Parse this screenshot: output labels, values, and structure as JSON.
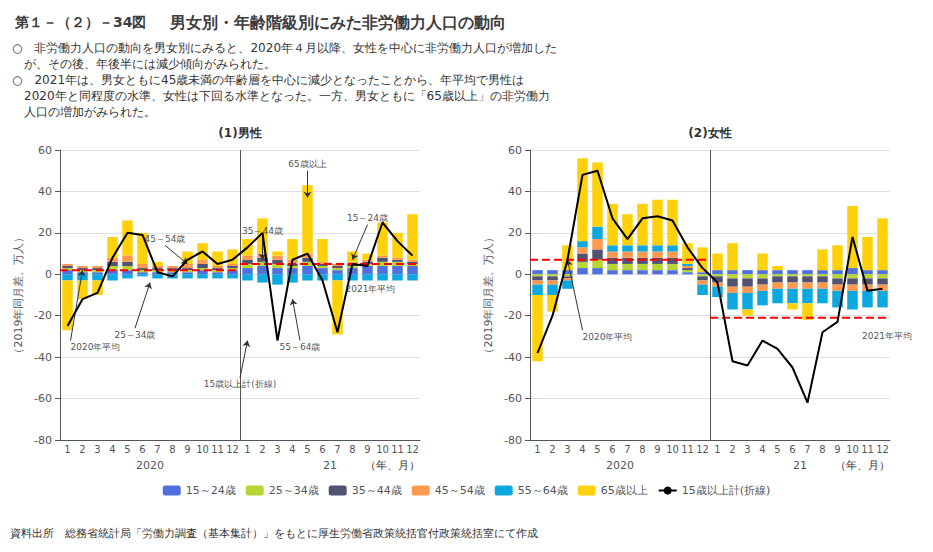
{
  "title_box": "第１－（２）－34図",
  "title": "男女別・年齢階級別にみた非労働力人口の動向",
  "text": [
    "○　非労働力人口の動向を男女別にみると、2020年４月以降、女性を中心に非労働力人口が増加した",
    "　が、その後、年後半には減少傾向がみられた。",
    "○　2021年は、男女ともに45歳未満の年齢層を中心に減少となったことから、年平均で男性は",
    "　2020年と同程度の水準、女性は下回る水準となった。一方、男女ともに「65歳以上」の非労働力",
    "　人口の増加がみられた。"
  ],
  "source": "資料出所　総務省統計局「労働力調査（基本集計）」をもとに厚生労働省政策統括官付政策統括室にて作成",
  "chart_data": [
    {
      "type": "bar",
      "title": "(1)男性",
      "x_label": "（年、月）",
      "y_label": "（2019年同月差、万人）",
      "categories": [
        "1",
        "2",
        "3",
        "4",
        "5",
        "6",
        "7",
        "8",
        "9",
        "10",
        "11",
        "12",
        "1",
        "2",
        "3",
        "4",
        "5",
        "6",
        "7",
        "8",
        "9",
        "10",
        "11",
        "12"
      ],
      "year_labels": [
        "2020",
        "21"
      ],
      "series": [
        {
          "name": "15～24歳",
          "values": [
            2,
            1,
            1,
            2,
            2,
            1,
            1,
            1,
            1,
            2,
            1,
            2,
            3,
            4,
            3,
            3,
            4,
            3,
            2,
            3,
            4,
            4,
            4,
            4
          ]
        },
        {
          "name": "25～34歳",
          "values": [
            1,
            1,
            1,
            2,
            2,
            1,
            1,
            1,
            1,
            1,
            1,
            1,
            2,
            2,
            2,
            1,
            2,
            1,
            1,
            1,
            1,
            2,
            2,
            1
          ]
        },
        {
          "name": "35～44歳",
          "values": [
            1,
            1,
            1,
            2,
            2,
            1,
            1,
            1,
            1,
            2,
            1,
            1,
            2,
            2,
            2,
            1,
            2,
            1,
            1,
            1,
            1,
            2,
            1,
            1
          ]
        },
        {
          "name": "45～54歳",
          "values": [
            1,
            1,
            1,
            2,
            3,
            2,
            1,
            1,
            2,
            2,
            1,
            1,
            2,
            2,
            2,
            2,
            2,
            1,
            1,
            1,
            1,
            1,
            1,
            1
          ]
        },
        {
          "name": "55～64歳",
          "values": [
            -3,
            -3,
            -3,
            -3,
            -2,
            -1,
            -2,
            -2,
            -2,
            -2,
            -2,
            -2,
            -3,
            -4,
            -5,
            -4,
            -3,
            -3,
            -3,
            -3,
            -3,
            -3,
            -3,
            -3
          ]
        },
        {
          "name": "65歳以上",
          "values": [
            -24,
            -9,
            -7,
            10,
            17,
            15,
            2,
            0,
            6,
            8,
            7,
            7,
            8,
            17,
            2,
            10,
            33,
            11,
            -26,
            5,
            3,
            16,
            12,
            22
          ]
        },
        {
          "name": "15歳以上計(折線)",
          "type": "line",
          "color": "#000000",
          "values": [
            -25,
            -12,
            -9,
            8,
            20,
            19,
            1,
            -1,
            7,
            11,
            5,
            7,
            13,
            20,
            -32,
            7,
            10,
            -3,
            -28,
            5,
            4,
            25,
            16,
            9
          ]
        }
      ],
      "averages": [
        {
          "x": [
            0.5,
            12.5
          ],
          "value": 2,
          "color": "#FF0000",
          "line_style": "dashed"
        },
        {
          "x": [
            12.5,
            24.5
          ],
          "value": 5,
          "color": "#FF0000",
          "line_style": "dashed"
        }
      ],
      "divider": 12.5,
      "annotations": [
        {
          "text": "2020年平均",
          "x": 1.2,
          "y": -32,
          "arrow": [
            2,
            2
          ],
          "align": "left"
        },
        {
          "text": "25～34歳",
          "x": 5.5,
          "y": -26,
          "arrow": [
            6.5,
            -4
          ]
        },
        {
          "text": "45～54歳",
          "x": 7.5,
          "y": 14,
          "arrow": [
            9,
            5
          ]
        },
        {
          "text": "35～44歳",
          "x": 14,
          "y": 18,
          "arrow": [
            14,
            7
          ]
        },
        {
          "text": "65歳以上",
          "x": 17,
          "y": 50,
          "arrow": [
            17,
            37
          ]
        },
        {
          "text": "15～24歳",
          "x": 21,
          "y": 24,
          "arrow": [
            20,
            7
          ]
        },
        {
          "text": "15歳以上計(折線)",
          "x": 12.5,
          "y": -50,
          "arrow": [
            13,
            -32
          ]
        },
        {
          "text": "55～64歳",
          "x": 16.5,
          "y": -32,
          "arrow": [
            16,
            -12
          ]
        },
        {
          "text": "2021年平均",
          "x": 23,
          "y": -7,
          "align": "right"
        }
      ],
      "ylim": [
        -80,
        60
      ],
      "yticks": [
        -80,
        -60,
        -40,
        -20,
        0,
        20,
        40,
        60
      ],
      "grid": true,
      "stacked": true,
      "legend": "bottom"
    },
    {
      "type": "bar",
      "title": "(2)女性",
      "x_label": "（年、月）",
      "y_label": "（2019年同月差、万人）",
      "categories": [
        "1",
        "2",
        "3",
        "4",
        "5",
        "6",
        "7",
        "8",
        "9",
        "10",
        "11",
        "12",
        "1",
        "2",
        "3",
        "4",
        "5",
        "6",
        "7",
        "8",
        "9",
        "10",
        "11",
        "12"
      ],
      "year_labels": [
        "2020",
        "21"
      ],
      "series": [
        {
          "name": "15～24歳",
          "values": [
            2,
            2,
            2,
            3,
            3,
            2,
            2,
            2,
            2,
            2,
            1,
            1,
            2,
            2,
            2,
            2,
            2,
            2,
            2,
            2,
            2,
            3,
            2,
            2
          ]
        },
        {
          "name": "25～34歳",
          "values": [
            -1,
            -1,
            -1,
            3,
            4,
            3,
            3,
            3,
            3,
            3,
            1,
            -1,
            -1,
            -2,
            -2,
            -2,
            -1,
            -1,
            -1,
            -1,
            -2,
            -2,
            -2,
            -2
          ]
        },
        {
          "name": "35～44歳",
          "values": [
            -2,
            -2,
            -1,
            4,
            5,
            3,
            3,
            3,
            3,
            3,
            1,
            -2,
            -3,
            -4,
            -4,
            -3,
            -3,
            -3,
            -3,
            -3,
            -3,
            -3,
            -3,
            -3
          ]
        },
        {
          "name": "45～54歳",
          "values": [
            -2,
            -2,
            -1,
            3,
            5,
            3,
            3,
            3,
            3,
            3,
            1,
            -2,
            -2,
            -3,
            -3,
            -3,
            -3,
            -3,
            -3,
            -3,
            -3,
            -3,
            -3,
            -3
          ]
        },
        {
          "name": "55～64歳",
          "values": [
            -5,
            -5,
            -4,
            3,
            6,
            3,
            3,
            3,
            3,
            3,
            1,
            -5,
            -5,
            -8,
            -8,
            -7,
            -7,
            -7,
            -7,
            -7,
            -8,
            -9,
            -8,
            -8
          ]
        },
        {
          "name": "65歳以上",
          "values": [
            -32,
            -8,
            12,
            40,
            31,
            20,
            15,
            20,
            22,
            22,
            10,
            12,
            8,
            13,
            -3,
            8,
            2,
            -3,
            -8,
            10,
            12,
            30,
            16,
            25
          ]
        },
        {
          "name": "15歳以上計(折線)",
          "type": "line",
          "color": "#000000",
          "values": [
            -38,
            -20,
            7,
            48,
            50,
            27,
            17,
            27,
            28,
            26,
            13,
            3,
            -4,
            -42,
            -44,
            -32,
            -36,
            -45,
            -62,
            -28,
            -23,
            18,
            -8,
            -7
          ]
        }
      ],
      "averages": [
        {
          "x": [
            0.5,
            12.5
          ],
          "value": 7,
          "color": "#FF0000",
          "line_style": "dashed"
        },
        {
          "x": [
            12.5,
            24.5
          ],
          "value": -21,
          "color": "#FF0000",
          "line_style": "dashed"
        }
      ],
      "divider": 12.5,
      "annotations": [
        {
          "text": "2020年平均",
          "x": 4,
          "y": -27,
          "arrow": [
            3,
            7
          ],
          "align": "left"
        },
        {
          "text": "2021年平均",
          "x": 22.5,
          "y": -30,
          "align": "left"
        }
      ],
      "ylim": [
        -80,
        60
      ],
      "yticks": [
        -80,
        -60,
        -40,
        -20,
        0,
        20,
        40,
        60
      ],
      "grid": true,
      "stacked": true,
      "legend": "bottom"
    }
  ]
}
